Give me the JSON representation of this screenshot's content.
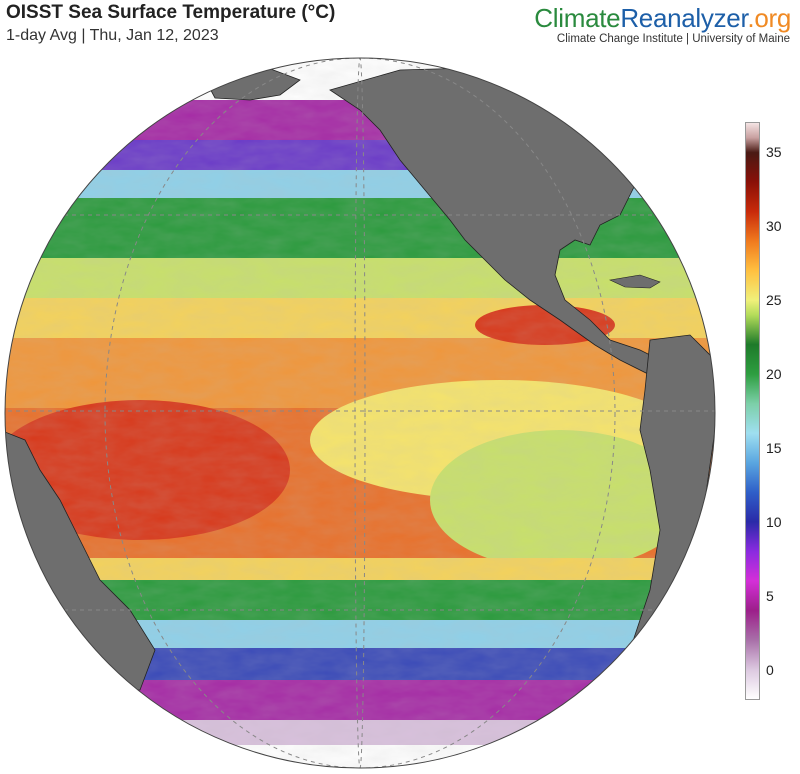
{
  "header": {
    "title": "OISST Sea Surface Temperature (°C)",
    "subtitle": "1-day Avg | Thu, Jan 12, 2023"
  },
  "brand": {
    "name_part1": "Climate",
    "name_part2": "Reanalyzer",
    "name_part3": ".org",
    "affiliation": "Climate Change Institute | University of Maine",
    "colors": {
      "part1": "#2a8a3e",
      "part2": "#1d5fa8",
      "part3": "#f08a24"
    }
  },
  "map": {
    "projection": "orthographic globe centered on the equatorial Pacific",
    "land_color": "#6e6e6e",
    "ice_color": "#ffffff",
    "graticule": "dashed gray lines"
  },
  "colorbar": {
    "min": -2,
    "max": 37,
    "tick_labels": [
      "35",
      "30",
      "25",
      "20",
      "15",
      "10",
      "5",
      "0"
    ],
    "tick_values": [
      35,
      30,
      25,
      20,
      15,
      10,
      5,
      0
    ],
    "stops": [
      {
        "value": -2,
        "color": "#ffffff"
      },
      {
        "value": 0,
        "color": "#dcc8e0"
      },
      {
        "value": 2,
        "color": "#a86fa8"
      },
      {
        "value": 4,
        "color": "#9c1f8a"
      },
      {
        "value": 6,
        "color": "#d42fd8"
      },
      {
        "value": 8,
        "color": "#8a2be0"
      },
      {
        "value": 10,
        "color": "#2a2aa8"
      },
      {
        "value": 12,
        "color": "#2f5fc8"
      },
      {
        "value": 14,
        "color": "#5aa6e0"
      },
      {
        "value": 16,
        "color": "#9fdff0"
      },
      {
        "value": 18,
        "color": "#7ccfa8"
      },
      {
        "value": 20,
        "color": "#2e9e40"
      },
      {
        "value": 22,
        "color": "#1e7a2a"
      },
      {
        "value": 24,
        "color": "#b4dc5a"
      },
      {
        "value": 25,
        "color": "#f0f07a"
      },
      {
        "value": 27,
        "color": "#ffc040"
      },
      {
        "value": 29,
        "color": "#f07a1e"
      },
      {
        "value": 31,
        "color": "#c82a0a"
      },
      {
        "value": 33,
        "color": "#8a1008"
      },
      {
        "value": 35,
        "color": "#4a1a14"
      },
      {
        "value": 36,
        "color": "#c8a0a0"
      },
      {
        "value": 37,
        "color": "#f4e4e4"
      }
    ]
  }
}
